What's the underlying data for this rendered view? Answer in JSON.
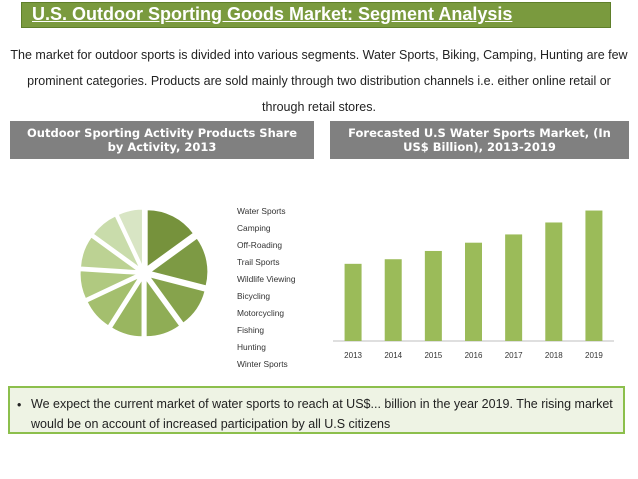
{
  "header": {
    "title": "U.S. Outdoor Sporting Goods Market: Segment Analysis"
  },
  "intro": {
    "text": "The market for outdoor sports is divided into various segments. Water Sports, Biking, Camping, Hunting are few prominent categories. Products are sold mainly through two distribution channels i.e. either online retail or through retail stores."
  },
  "left_panel": {
    "heading": "Outdoor Sporting Activity Products Share by Activity, 2013"
  },
  "right_panel": {
    "heading": "Forecasted U.S Water Sports Market, (In US$ Billion), 2013-2019"
  },
  "conclusion": {
    "bullet": "•",
    "text": "We expect the current market of water sports  to reach at US$... billion in the year 2019. The rising market would be on account of increased participation by all U.S citizens"
  },
  "colors": {
    "title_bg": "#7a9a3e",
    "panel_head_bg": "#808080",
    "bar": "#9bbb59",
    "conclusion_bg": "#eef3e4",
    "conclusion_border": "#8cbf4c"
  },
  "chart_data": [
    {
      "type": "pie",
      "title": "",
      "categories": [
        "Water Sports",
        "Camping",
        "Off-Roading",
        "Trail Sports",
        "Wildlife Viewing",
        "Bicycling",
        "Motorcycling",
        "Fishing",
        "Hunting",
        "Winter Sports"
      ],
      "values": [
        15,
        14,
        11,
        10,
        9,
        9,
        8,
        9,
        8,
        7
      ],
      "colors": [
        "#76923c",
        "#7d9a44",
        "#86a34c",
        "#8fad55",
        "#99b660",
        "#a4bf6e",
        "#b0c980",
        "#bcd293",
        "#c9dcab",
        "#d8e5c4"
      ],
      "legend_position": "right"
    },
    {
      "type": "bar",
      "title": "",
      "categories": [
        "2013",
        "2014",
        "2015",
        "2016",
        "2017",
        "2018",
        "2019"
      ],
      "values": [
        8.4,
        8.9,
        9.8,
        10.7,
        11.6,
        12.9,
        14.2
      ],
      "xlabel": "",
      "ylabel": "",
      "ylim": [
        0,
        16
      ],
      "grid": false,
      "color": "#9bbb59"
    }
  ]
}
